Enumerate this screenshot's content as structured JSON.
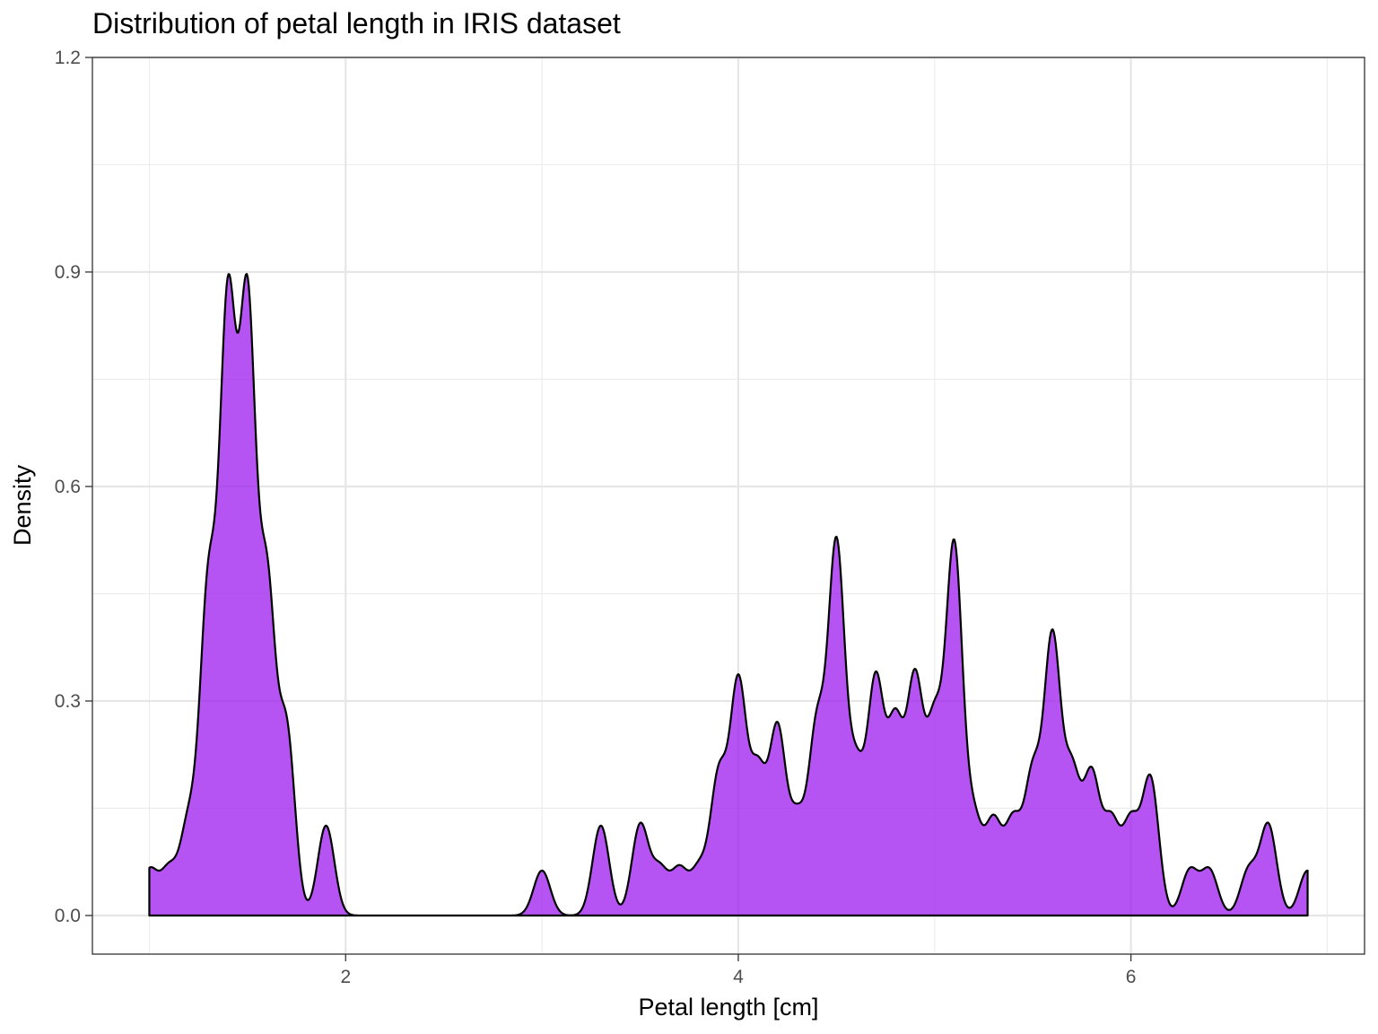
{
  "chart_data": {
    "type": "area",
    "title": "Distribution of petal length in IRIS dataset",
    "xlabel": "Petal length [cm]",
    "ylabel": "Density",
    "xlim": [
      0.71,
      7.19
    ],
    "ylim": [
      -0.054,
      1.2
    ],
    "xticks": [
      2,
      4,
      6
    ],
    "yticks": [
      0.0,
      0.3,
      0.6,
      0.9,
      1.2
    ],
    "ytick_labels": [
      "0.0",
      "0.3",
      "0.6",
      "0.9",
      "1.2"
    ],
    "grid": true,
    "fill_color": "#a020f0",
    "fill_opacity": 0.77,
    "line_color": "#000000",
    "bandwidth": 0.0423,
    "x_range": [
      1.0,
      6.9
    ],
    "sample_values": [
      {
        "x": 1.0,
        "count": 1
      },
      {
        "x": 1.1,
        "count": 1
      },
      {
        "x": 1.2,
        "count": 2
      },
      {
        "x": 1.3,
        "count": 7
      },
      {
        "x": 1.4,
        "count": 13
      },
      {
        "x": 1.5,
        "count": 13
      },
      {
        "x": 1.6,
        "count": 7
      },
      {
        "x": 1.7,
        "count": 4
      },
      {
        "x": 1.9,
        "count": 2
      },
      {
        "x": 3.0,
        "count": 1
      },
      {
        "x": 3.3,
        "count": 2
      },
      {
        "x": 3.5,
        "count": 2
      },
      {
        "x": 3.6,
        "count": 1
      },
      {
        "x": 3.7,
        "count": 1
      },
      {
        "x": 3.8,
        "count": 1
      },
      {
        "x": 3.9,
        "count": 3
      },
      {
        "x": 4.0,
        "count": 5
      },
      {
        "x": 4.1,
        "count": 3
      },
      {
        "x": 4.2,
        "count": 4
      },
      {
        "x": 4.3,
        "count": 2
      },
      {
        "x": 4.4,
        "count": 4
      },
      {
        "x": 4.5,
        "count": 8
      },
      {
        "x": 4.6,
        "count": 3
      },
      {
        "x": 4.7,
        "count": 5
      },
      {
        "x": 4.8,
        "count": 4
      },
      {
        "x": 4.9,
        "count": 5
      },
      {
        "x": 5.0,
        "count": 4
      },
      {
        "x": 5.1,
        "count": 8
      },
      {
        "x": 5.2,
        "count": 2
      },
      {
        "x": 5.3,
        "count": 2
      },
      {
        "x": 5.4,
        "count": 2
      },
      {
        "x": 5.5,
        "count": 3
      },
      {
        "x": 5.6,
        "count": 6
      },
      {
        "x": 5.7,
        "count": 3
      },
      {
        "x": 5.8,
        "count": 3
      },
      {
        "x": 5.9,
        "count": 2
      },
      {
        "x": 6.0,
        "count": 2
      },
      {
        "x": 6.1,
        "count": 3
      },
      {
        "x": 6.3,
        "count": 1
      },
      {
        "x": 6.4,
        "count": 1
      },
      {
        "x": 6.6,
        "count": 1
      },
      {
        "x": 6.7,
        "count": 2
      },
      {
        "x": 6.9,
        "count": 1
      }
    ]
  }
}
